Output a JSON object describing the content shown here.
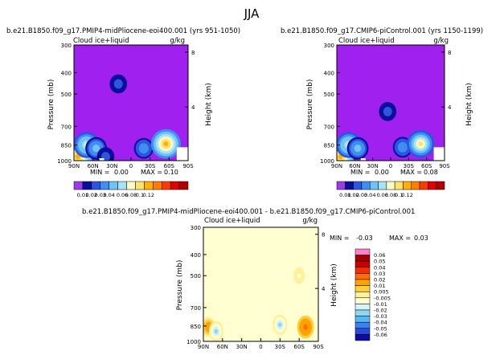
{
  "page_title": "JJA",
  "colors": {
    "bg_purple": "#a020f0",
    "seq": [
      "#9c3ce4",
      "#0d0d9c",
      "#2c55e0",
      "#3f8ef0",
      "#6fc3f5",
      "#a8e3f5",
      "#fafac8",
      "#ffe36b",
      "#ffb000",
      "#ff7f00",
      "#ff3a00",
      "#e00000",
      "#b00000",
      "#ff78c4"
    ],
    "div": [
      "#a020f0",
      "#0c0ca0",
      "#2a4bd8",
      "#3b82f0",
      "#56b7f2",
      "#8fd8f5",
      "#d7f3f8",
      "#ffffd0",
      "#fff09a",
      "#ffcf40",
      "#ffa200",
      "#ff6d00",
      "#f03000",
      "#c80000",
      "#a00000",
      "#ff7fc8"
    ]
  },
  "chart_data": [
    {
      "type": "heatmap",
      "title": "b.e21.B1850.f09_g17.PMIP4-midPliocene-eoi400.001 (yrs 951-1050)",
      "left_label": "Cloud ice+liquid",
      "units": "g/kg",
      "xlabel": "",
      "ylabel": "Pressure (mb)",
      "y2label": "Height (km)",
      "x_ticks": [
        "90N",
        "60N",
        "30N",
        "0",
        "30S",
        "60S",
        "90S"
      ],
      "x_values": [
        90,
        60,
        30,
        0,
        -30,
        -60,
        -90
      ],
      "y_ticks": [
        "300",
        "400",
        "500",
        "700",
        "850",
        "1000"
      ],
      "y_values": [
        300,
        400,
        500,
        700,
        850,
        1000
      ],
      "y2_ticks": [
        "8",
        "4"
      ],
      "min_label": "MIN =",
      "min_value": "0.00",
      "max_label": "MAX =",
      "max_value": "0.10",
      "colorbar_labels": [
        "0.01",
        "0.02",
        "0.03",
        "0.04",
        "0.06",
        "0.08",
        "0.1",
        "0.12"
      ],
      "features": [
        {
          "lat": 84,
          "p": 960,
          "value": 0.08
        },
        {
          "lat": 70,
          "p": 850,
          "value": 0.05
        },
        {
          "lat": 55,
          "p": 880,
          "value": 0.03
        },
        {
          "lat": 40,
          "p": 960,
          "value": 0.01
        },
        {
          "lat": -20,
          "p": 880,
          "value": 0.02
        },
        {
          "lat": -55,
          "p": 840,
          "value": 0.07
        },
        {
          "lat": 20,
          "p": 450,
          "value": 0.01
        }
      ]
    },
    {
      "type": "heatmap",
      "title": "b.e21.B1850.f09_g17.CMIP6-piControl.001 (yrs 1150-1199)",
      "left_label": "Cloud ice+liquid",
      "units": "g/kg",
      "xlabel": "",
      "ylabel": "Pressure (mb)",
      "y2label": "Height (km)",
      "x_ticks": [
        "90N",
        "60N",
        "30N",
        "0",
        "30S",
        "60S",
        "90S"
      ],
      "x_values": [
        90,
        60,
        30,
        0,
        -30,
        -60,
        -90
      ],
      "y_ticks": [
        "300",
        "400",
        "500",
        "700",
        "850",
        "1000"
      ],
      "y_values": [
        300,
        400,
        500,
        700,
        850,
        1000
      ],
      "y2_ticks": [
        "8",
        "4"
      ],
      "min_label": "MIN =",
      "min_value": "0.00",
      "max_label": "MAX =",
      "max_value": "0.08",
      "colorbar_labels": [
        "0.01",
        "0.02",
        "0.03",
        "0.04",
        "0.06",
        "0.08",
        "0.1",
        "0.12"
      ],
      "features": [
        {
          "lat": 84,
          "p": 960,
          "value": 0.07
        },
        {
          "lat": 70,
          "p": 850,
          "value": 0.05
        },
        {
          "lat": 55,
          "p": 880,
          "value": 0.03
        },
        {
          "lat": -20,
          "p": 870,
          "value": 0.02
        },
        {
          "lat": -50,
          "p": 840,
          "value": 0.06
        },
        {
          "lat": 5,
          "p": 600,
          "value": 0.01
        }
      ]
    },
    {
      "type": "heatmap",
      "title": "b.e21.B1850.f09_g17.PMIP4-midPliocene-eoi400.001 - b.e21.B1850.f09_g17.CMIP6-piControl.001",
      "left_label": "Cloud ice+liquid",
      "units": "g/kg",
      "xlabel": "",
      "ylabel": "Pressure (mb)",
      "y2label": "Height (km)",
      "x_ticks": [
        "90N",
        "60N",
        "30N",
        "0",
        "30S",
        "60S",
        "90S"
      ],
      "x_values": [
        90,
        60,
        30,
        0,
        -30,
        -60,
        -90
      ],
      "y_ticks": [
        "300",
        "400",
        "500",
        "700",
        "850",
        "1000"
      ],
      "y_values": [
        300,
        400,
        500,
        700,
        850,
        1000
      ],
      "y2_ticks": [
        "8",
        "4"
      ],
      "min_label": "MIN =",
      "min_value": "-0.03",
      "max_label": "MAX =",
      "max_value": "0.03",
      "colorbar_labels": [
        "0.06",
        "0.05",
        "0.04",
        "0.03",
        "0.02",
        "0.01",
        "0.005",
        "-0.005",
        "-0.01",
        "-0.02",
        "-0.03",
        "-0.04",
        "-0.05",
        "-0.06"
      ],
      "features": [
        {
          "lat": 82,
          "p": 860,
          "value": 0.02
        },
        {
          "lat": 70,
          "p": 900,
          "value": -0.02
        },
        {
          "lat": -30,
          "p": 840,
          "value": -0.02
        },
        {
          "lat": -70,
          "p": 860,
          "value": 0.03
        },
        {
          "lat": -60,
          "p": 500,
          "value": -0.005
        }
      ]
    }
  ]
}
